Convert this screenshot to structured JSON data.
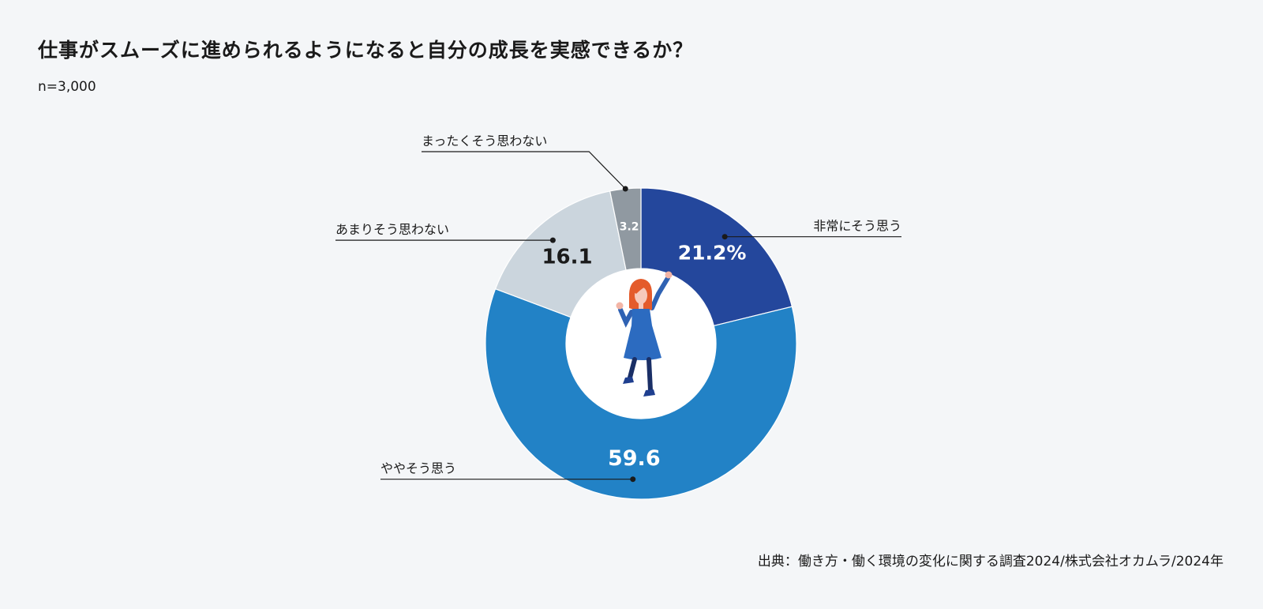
{
  "header": {
    "title": "仕事がスムーズに進められるようになると自分の成長を実感できるか？",
    "sample_size": "n=3,000"
  },
  "footer": {
    "source": "出典：働き方・働く環境の変化に関する調査2024/株式会社オカムラ/2024年"
  },
  "chart_data": {
    "type": "pie",
    "variant": "donut",
    "title": "仕事がスムーズに進められるようになると自分の成長を実感できるか？",
    "slices": [
      {
        "label": "非常にそう思う",
        "value": 21.2,
        "display": "21.2%",
        "color": "#24479c",
        "text_color": "#ffffff"
      },
      {
        "label": "ややそう思う",
        "value": 59.6,
        "display": "59.6",
        "color": "#2282c6",
        "text_color": "#ffffff"
      },
      {
        "label": "あまりそう思わない",
        "value": 16.1,
        "display": "16.1",
        "color": "#cbd5dd",
        "text_color": "#1a1a1a"
      },
      {
        "label": "まったくそう思わない",
        "value": 3.2,
        "display": "3.2",
        "color": "#9099a1",
        "text_color": "#ffffff"
      }
    ],
    "center_illustration": "woman-cheering-illustration"
  }
}
